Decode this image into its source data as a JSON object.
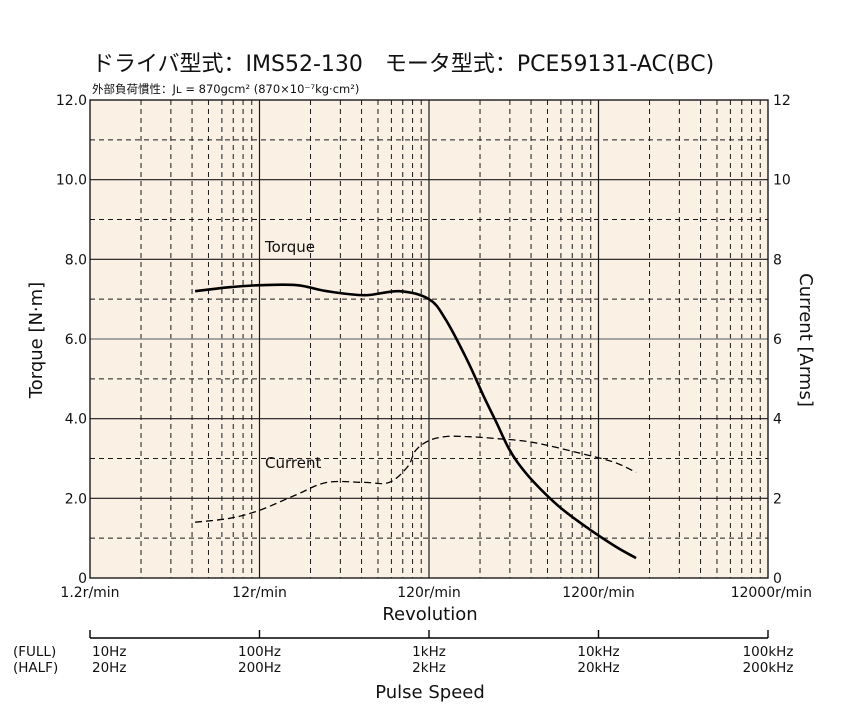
{
  "title": "ドライバ型式：IMS52-130　モータ型式：PCE59131-AC(BC)",
  "subtitle": "外部負荷慣性：Jʟ = 870gcm² (870×10⁻⁷kg·cm²)",
  "chart_data": {
    "type": "line",
    "title": "ドライバ型式：IMS52-130　モータ型式：PCE59131-AC(BC)",
    "subtitle": "外部負荷慣性：Jʟ = 870gcm² (870×10⁻⁷kg·cm²)",
    "xlabel": "Revolution",
    "xscale": "log",
    "xlim": [
      1.2,
      12000
    ],
    "x_ticks": [
      "1.2r/min",
      "12r/min",
      "120r/min",
      "1200r/min",
      "12000r/min"
    ],
    "ylabel_left": "Torque  [N·m]",
    "ylim_left": [
      0,
      12
    ],
    "y_ticks_left": [
      "0",
      "2.0",
      "4.0",
      "6.0",
      "8.0",
      "10.0",
      "12.0"
    ],
    "ylabel_right": "Current  [Arms]",
    "ylim_right": [
      0,
      12
    ],
    "y_ticks_right": [
      "0",
      "2",
      "4",
      "6",
      "8",
      "10",
      "12"
    ],
    "grid": true,
    "series": [
      {
        "name": "Torque",
        "axis": "left",
        "style": "solid",
        "x": [
          5,
          8,
          12,
          20,
          30,
          50,
          80,
          120,
          150,
          200,
          250,
          300,
          350,
          400,
          500,
          700,
          1000,
          1500,
          2000
        ],
        "y": [
          7.2,
          7.3,
          7.35,
          7.35,
          7.2,
          7.1,
          7.2,
          7.0,
          6.5,
          5.5,
          4.6,
          3.9,
          3.3,
          2.9,
          2.4,
          1.8,
          1.3,
          0.8,
          0.5
        ]
      },
      {
        "name": "Current",
        "axis": "right",
        "style": "dashed",
        "x": [
          5,
          8,
          12,
          20,
          30,
          50,
          70,
          90,
          100,
          120,
          150,
          200,
          300,
          500,
          1000,
          1500,
          2000
        ],
        "y": [
          1.4,
          1.5,
          1.7,
          2.1,
          2.4,
          2.4,
          2.4,
          2.8,
          3.2,
          3.45,
          3.55,
          3.55,
          3.5,
          3.4,
          3.1,
          2.9,
          2.65
        ]
      }
    ],
    "annotations": [
      "Torque",
      "Current"
    ]
  },
  "pulse_axis": {
    "title": "Pulse Speed",
    "row_full": "(FULL)",
    "row_half": "(HALF)",
    "full": [
      "10Hz",
      "100Hz",
      "1kHz",
      "10kHz",
      "100kHz"
    ],
    "half": [
      "20Hz",
      "200Hz",
      "2kHz",
      "20kHz",
      "200kHz"
    ]
  },
  "colors": {
    "plot_background": "#faf0e4",
    "line": "#000000",
    "grid": "#1a1a1a",
    "gray_grid": "#8a8a8a"
  }
}
